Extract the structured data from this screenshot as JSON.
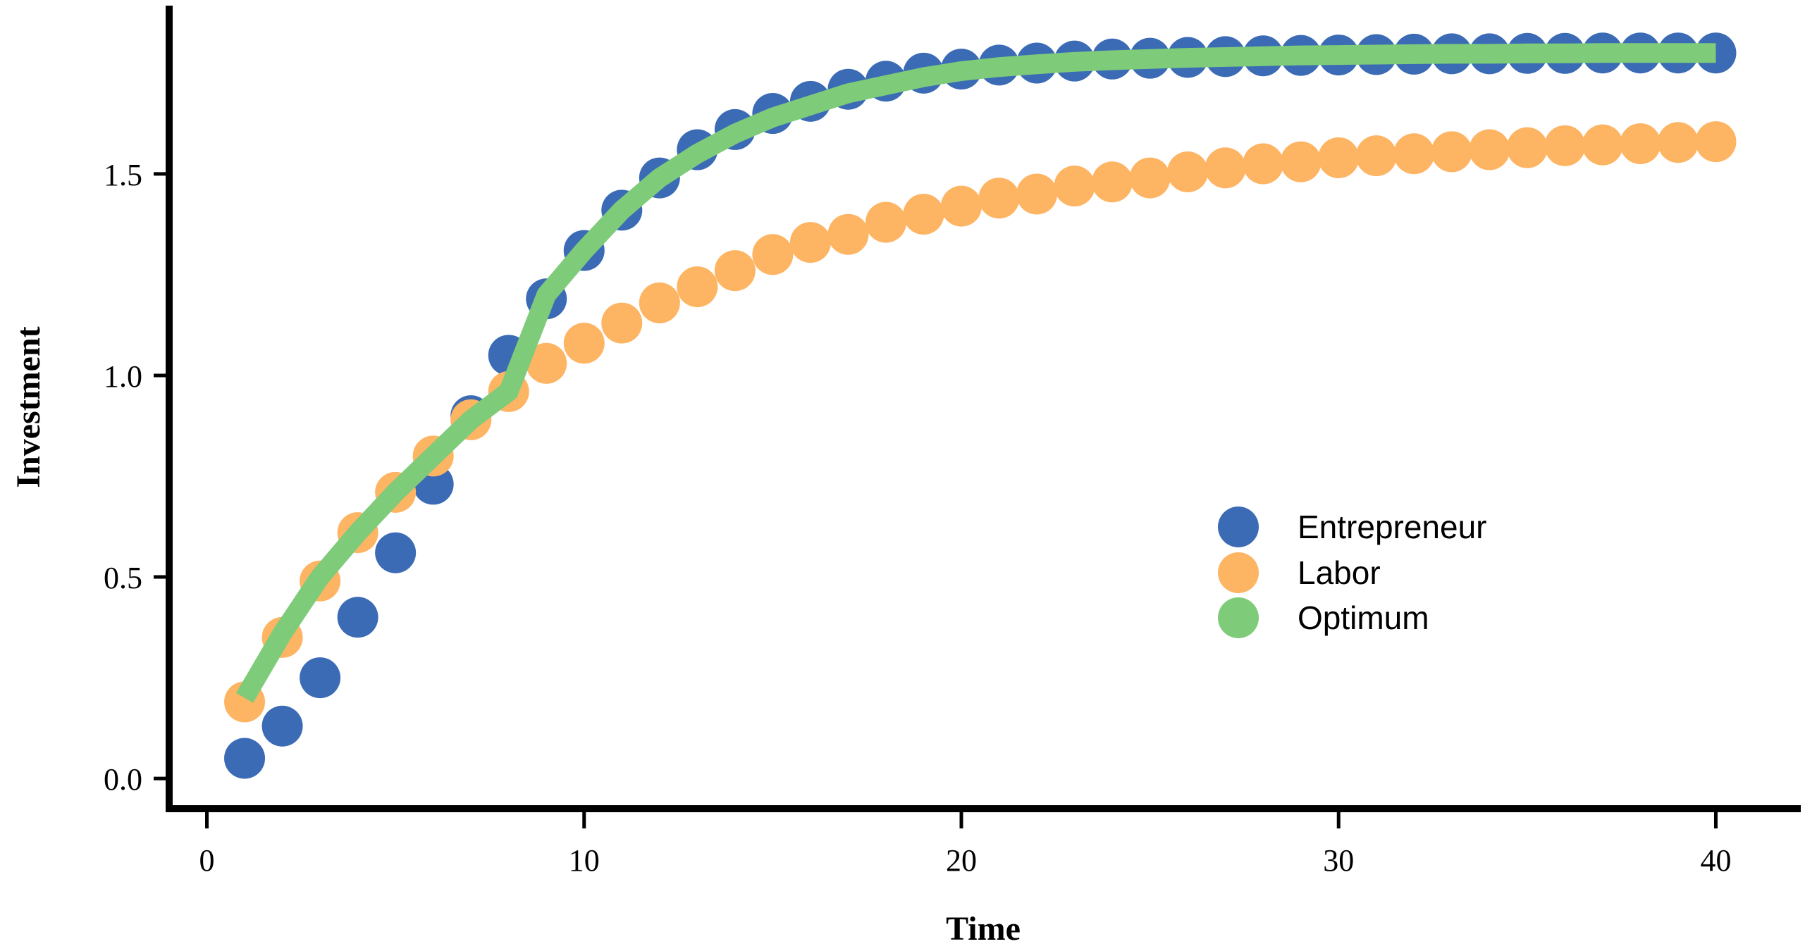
{
  "chart_data": {
    "type": "scatter",
    "xlabel": "Time",
    "ylabel": "Investment",
    "xlim": [
      -1,
      41
    ],
    "ylim": [
      -0.04,
      1.9
    ],
    "xticks": [
      0,
      10,
      20,
      30,
      40
    ],
    "yticks": [
      0.0,
      0.5,
      1.0,
      1.5
    ],
    "xtick_labels": [
      "0",
      "10",
      "20",
      "30",
      "40"
    ],
    "ytick_labels": [
      "0.0",
      "0.5",
      "1.0",
      "1.5"
    ],
    "x": [
      1,
      2,
      3,
      4,
      5,
      6,
      7,
      8,
      9,
      10,
      11,
      12,
      13,
      14,
      15,
      16,
      17,
      18,
      19,
      20,
      21,
      22,
      23,
      24,
      25,
      26,
      27,
      28,
      29,
      30,
      31,
      32,
      33,
      34,
      35,
      36,
      37,
      38,
      39,
      40
    ],
    "legend_position": "right",
    "series": [
      {
        "name": "Entrepreneur",
        "kind": "points",
        "color": "#3B6BB5",
        "values": [
          0.05,
          0.13,
          0.25,
          0.4,
          0.56,
          0.73,
          0.9,
          1.05,
          1.19,
          1.31,
          1.41,
          1.49,
          1.56,
          1.61,
          1.65,
          1.68,
          1.71,
          1.73,
          1.75,
          1.76,
          1.77,
          1.775,
          1.78,
          1.785,
          1.787,
          1.789,
          1.791,
          1.793,
          1.794,
          1.795,
          1.796,
          1.797,
          1.798,
          1.798,
          1.799,
          1.799,
          1.8,
          1.8,
          1.8,
          1.8
        ]
      },
      {
        "name": "Labor",
        "kind": "points",
        "color": "#FDB463",
        "values": [
          0.19,
          0.35,
          0.49,
          0.61,
          0.71,
          0.8,
          0.89,
          0.96,
          1.03,
          1.08,
          1.13,
          1.18,
          1.22,
          1.26,
          1.3,
          1.33,
          1.35,
          1.38,
          1.4,
          1.42,
          1.44,
          1.45,
          1.47,
          1.48,
          1.49,
          1.505,
          1.515,
          1.525,
          1.53,
          1.54,
          1.545,
          1.55,
          1.555,
          1.56,
          1.565,
          1.57,
          1.572,
          1.575,
          1.578,
          1.58
        ]
      },
      {
        "name": "Optimum",
        "kind": "line",
        "color": "#7ECB7A",
        "values": [
          0.2,
          0.36,
          0.5,
          0.61,
          0.71,
          0.8,
          0.89,
          0.96,
          1.2,
          1.31,
          1.41,
          1.49,
          1.55,
          1.6,
          1.64,
          1.67,
          1.7,
          1.72,
          1.74,
          1.755,
          1.765,
          1.772,
          1.778,
          1.782,
          1.785,
          1.788,
          1.79,
          1.792,
          1.794,
          1.795,
          1.796,
          1.797,
          1.798,
          1.798,
          1.799,
          1.799,
          1.8,
          1.8,
          1.8,
          1.8
        ]
      }
    ]
  }
}
